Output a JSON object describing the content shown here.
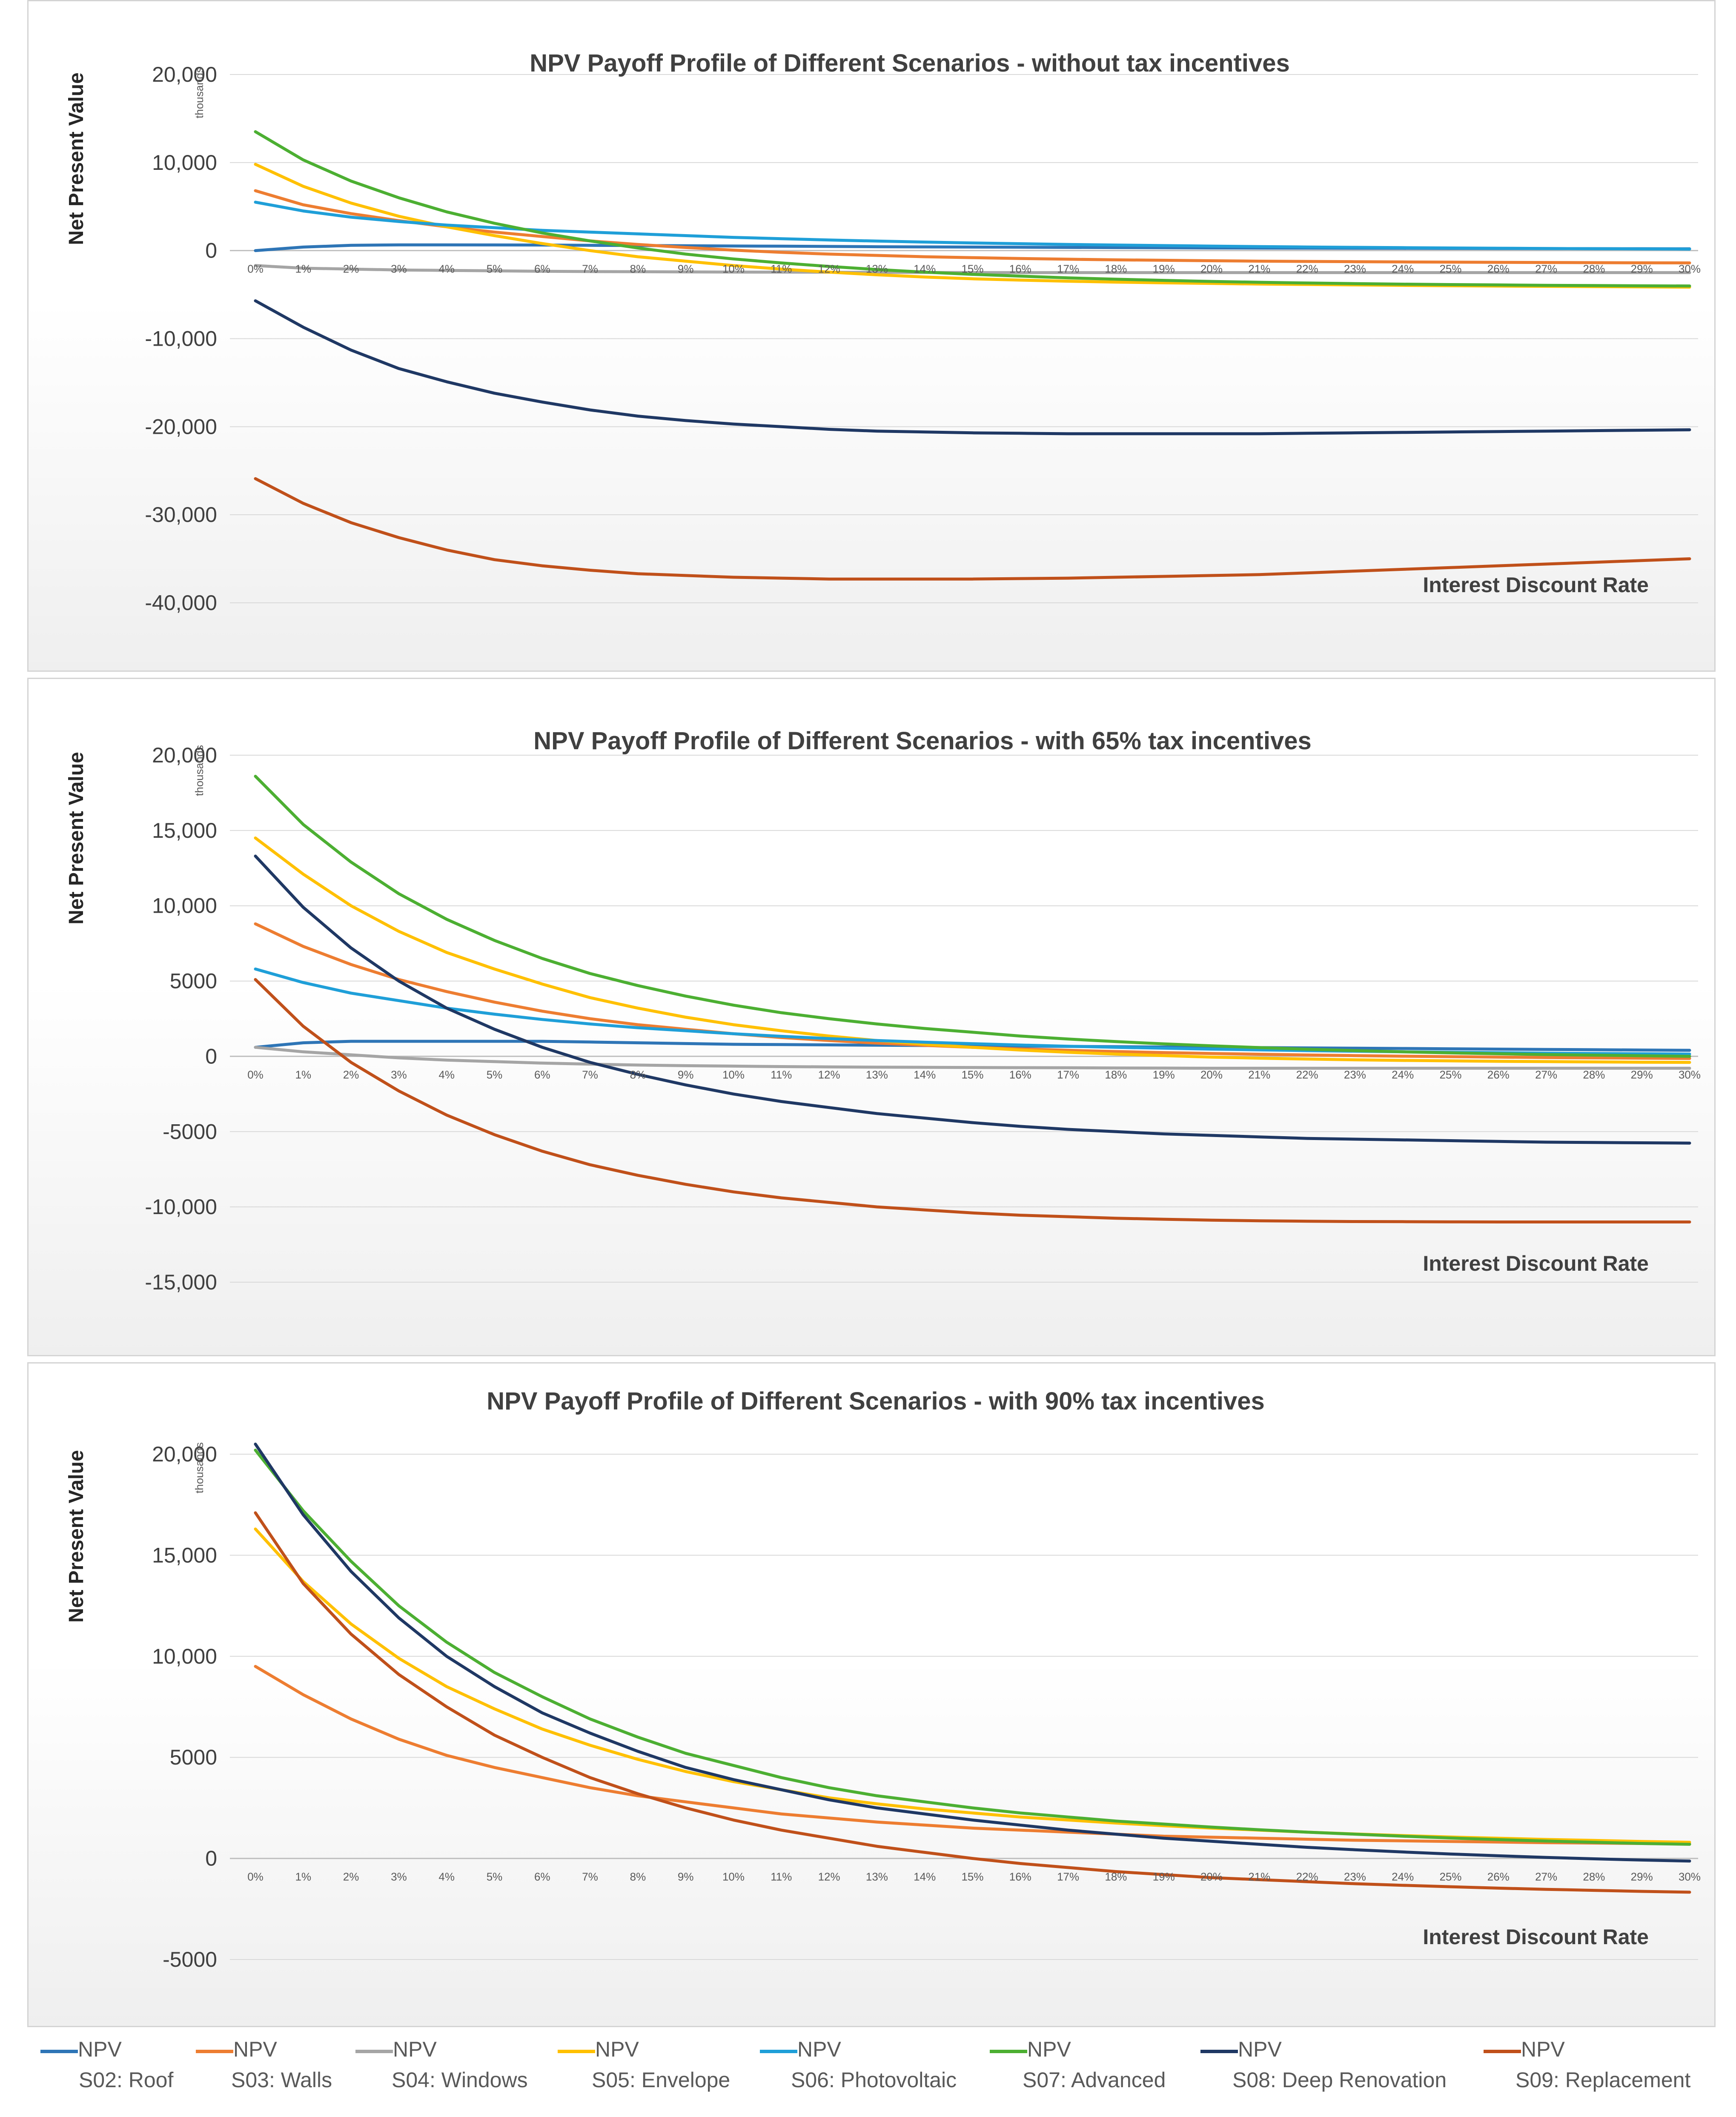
{
  "legend": [
    {
      "line": "NPV",
      "name": "S02: Roof",
      "color": "#2e75b6"
    },
    {
      "line": "NPV",
      "name": "S03: Walls",
      "color": "#ed7d31"
    },
    {
      "line": "NPV",
      "name": "S04: Windows",
      "color": "#a5a5a5"
    },
    {
      "line": "NPV",
      "name": "S05: Envelope",
      "color": "#ffc000"
    },
    {
      "line": "NPV",
      "name": "S06: Photovoltaic",
      "color": "#1f9fd8"
    },
    {
      "line": "NPV",
      "name": "S07: Advanced",
      "color": "#4caf32"
    },
    {
      "line": "NPV",
      "name": "S08: Deep Renovation",
      "color": "#1f3864"
    },
    {
      "line": "NPV",
      "name": "S09: Replacement",
      "color": "#c0501a"
    }
  ],
  "chart_data": [
    {
      "type": "line",
      "title": "NPV Payoff Profile of Different Scenarios - without tax incentives",
      "ylabel": "Net Present Value",
      "yunit": "thousands",
      "xlabel": "Interest Discount  Rate",
      "ylim": [
        -40000,
        20000
      ],
      "yticks": [
        20000,
        10000,
        0,
        -10000,
        -20000,
        -30000,
        -40000
      ],
      "ytick_labels": [
        "20,000",
        "10,000",
        "0",
        "-10,000",
        "-20,000",
        "-30,000",
        "-40,000"
      ],
      "categories": [
        "0%",
        "1%",
        "2%",
        "3%",
        "4%",
        "5%",
        "6%",
        "7%",
        "8%",
        "9%",
        "10%",
        "11%",
        "12%",
        "13%",
        "14%",
        "15%",
        "16%",
        "17%",
        "18%",
        "19%",
        "20%",
        "21%",
        "22%",
        "23%",
        "24%",
        "25%",
        "26%",
        "27%",
        "28%",
        "29%",
        "30%"
      ],
      "series": [
        {
          "name": "S02: Roof",
          "values": [
            0,
            400,
            600,
            650,
            650,
            640,
            630,
            600,
            580,
            550,
            520,
            500,
            470,
            440,
            420,
            400,
            380,
            360,
            340,
            320,
            300,
            290,
            280,
            270,
            260,
            250,
            240,
            230,
            220,
            210,
            200
          ]
        },
        {
          "name": "S03: Walls",
          "values": [
            6800,
            5200,
            4200,
            3400,
            2700,
            2100,
            1600,
            1100,
            700,
            350,
            50,
            -200,
            -400,
            -550,
            -700,
            -800,
            -900,
            -980,
            -1050,
            -1100,
            -1150,
            -1200,
            -1230,
            -1260,
            -1290,
            -1310,
            -1330,
            -1350,
            -1370,
            -1390,
            -1400
          ]
        },
        {
          "name": "S04: Windows",
          "values": [
            -1700,
            -2000,
            -2100,
            -2200,
            -2250,
            -2300,
            -2350,
            -2380,
            -2400,
            -2420,
            -2440,
            -2450,
            -2460,
            -2470,
            -2480,
            -2490,
            -2500,
            -2500,
            -2500,
            -2500,
            -2500,
            -2500,
            -2500,
            -2500,
            -2500,
            -2500,
            -2500,
            -2500,
            -2500,
            -2500,
            -2500
          ]
        },
        {
          "name": "S05: Envelope",
          "values": [
            9800,
            7300,
            5400,
            3900,
            2700,
            1700,
            800,
            0,
            -700,
            -1200,
            -1700,
            -2100,
            -2450,
            -2750,
            -3000,
            -3200,
            -3350,
            -3480,
            -3580,
            -3660,
            -3730,
            -3800,
            -3850,
            -3900,
            -3950,
            -3990,
            -4030,
            -4060,
            -4090,
            -4120,
            -4150
          ]
        },
        {
          "name": "S06: Photovoltaic",
          "values": [
            5500,
            4500,
            3800,
            3300,
            2900,
            2600,
            2300,
            2100,
            1900,
            1700,
            1500,
            1350,
            1200,
            1080,
            970,
            870,
            780,
            700,
            630,
            570,
            510,
            460,
            410,
            370,
            330,
            300,
            270,
            240,
            210,
            190,
            170
          ]
        },
        {
          "name": "S07: Advanced",
          "values": [
            13500,
            10300,
            7900,
            6000,
            4400,
            3100,
            2000,
            1100,
            300,
            -400,
            -950,
            -1400,
            -1800,
            -2150,
            -2450,
            -2700,
            -2900,
            -3100,
            -3250,
            -3380,
            -3500,
            -3600,
            -3680,
            -3750,
            -3810,
            -3860,
            -3900,
            -3940,
            -3970,
            -4000,
            -4020
          ]
        },
        {
          "name": "S08: Deep Renovation",
          "values": [
            -5700,
            -8700,
            -11300,
            -13400,
            -14900,
            -16200,
            -17200,
            -18100,
            -18800,
            -19300,
            -19700,
            -20000,
            -20300,
            -20500,
            -20600,
            -20700,
            -20750,
            -20800,
            -20800,
            -20800,
            -20800,
            -20800,
            -20750,
            -20700,
            -20650,
            -20600,
            -20550,
            -20500,
            -20450,
            -20400,
            -20350
          ]
        },
        {
          "name": "S09: Replacement",
          "values": [
            -25900,
            -28700,
            -30900,
            -32600,
            -34000,
            -35100,
            -35800,
            -36300,
            -36700,
            -36900,
            -37100,
            -37200,
            -37300,
            -37300,
            -37300,
            -37300,
            -37250,
            -37200,
            -37100,
            -37000,
            -36900,
            -36800,
            -36600,
            -36400,
            -36200,
            -36000,
            -35800,
            -35600,
            -35400,
            -35200,
            -35000
          ]
        }
      ]
    },
    {
      "type": "line",
      "title": "NPV Payoff Profile of Different Scenarios - with 65% tax incentives",
      "ylabel": "Net Present Value",
      "yunit": "thousands",
      "xlabel": "Interest Discount  Rate",
      "ylim": [
        -15000,
        20000
      ],
      "yticks": [
        20000,
        15000,
        10000,
        5000,
        0,
        -5000,
        -10000,
        -15000
      ],
      "ytick_labels": [
        "20,000",
        "15,000",
        "10,000",
        "5000",
        "0",
        "-5000",
        "-10,000",
        "-15,000"
      ],
      "categories": [
        "0%",
        "1%",
        "2%",
        "3%",
        "4%",
        "5%",
        "6%",
        "7%",
        "8%",
        "9%",
        "10%",
        "11%",
        "12%",
        "13%",
        "14%",
        "15%",
        "16%",
        "17%",
        "18%",
        "19%",
        "20%",
        "21%",
        "22%",
        "23%",
        "24%",
        "25%",
        "26%",
        "27%",
        "28%",
        "29%",
        "30%"
      ],
      "series": [
        {
          "name": "S02: Roof",
          "values": [
            600,
            900,
            1000,
            1000,
            1000,
            1000,
            1000,
            950,
            900,
            850,
            800,
            780,
            760,
            740,
            720,
            700,
            680,
            660,
            640,
            620,
            600,
            580,
            560,
            540,
            520,
            500,
            480,
            460,
            440,
            420,
            400
          ]
        },
        {
          "name": "S03: Walls",
          "values": [
            8800,
            7300,
            6100,
            5100,
            4300,
            3600,
            3000,
            2500,
            2100,
            1800,
            1500,
            1250,
            1050,
            880,
            730,
            600,
            490,
            400,
            320,
            250,
            190,
            140,
            90,
            50,
            10,
            -20,
            -50,
            -80,
            -100,
            -120,
            -140
          ]
        },
        {
          "name": "S04: Windows",
          "values": [
            600,
            300,
            100,
            -100,
            -250,
            -350,
            -450,
            -520,
            -580,
            -620,
            -650,
            -680,
            -700,
            -720,
            -730,
            -740,
            -750,
            -760,
            -770,
            -780,
            -790,
            -790,
            -790,
            -790,
            -790,
            -790,
            -790,
            -790,
            -790,
            -790,
            -790
          ]
        },
        {
          "name": "S05: Envelope",
          "values": [
            14500,
            12100,
            10000,
            8300,
            6900,
            5800,
            4800,
            3900,
            3200,
            2600,
            2100,
            1700,
            1350,
            1050,
            800,
            600,
            420,
            270,
            150,
            50,
            -50,
            -120,
            -180,
            -230,
            -270,
            -300,
            -330,
            -350,
            -370,
            -390,
            -400
          ]
        },
        {
          "name": "S06: Photovoltaic",
          "values": [
            5800,
            4900,
            4200,
            3700,
            3200,
            2800,
            2450,
            2150,
            1900,
            1700,
            1500,
            1330,
            1180,
            1050,
            940,
            840,
            750,
            670,
            600,
            540,
            480,
            430,
            380,
            340,
            300,
            270,
            240,
            210,
            190,
            170,
            150
          ]
        },
        {
          "name": "S07: Advanced",
          "values": [
            18600,
            15400,
            12900,
            10800,
            9100,
            7700,
            6500,
            5500,
            4700,
            4000,
            3400,
            2900,
            2500,
            2150,
            1850,
            1600,
            1350,
            1150,
            980,
            830,
            700,
            580,
            470,
            380,
            300,
            230,
            170,
            120,
            80,
            40,
            0
          ]
        },
        {
          "name": "S08: Deep Renovation",
          "values": [
            13300,
            9900,
            7200,
            5000,
            3200,
            1800,
            600,
            -400,
            -1200,
            -1900,
            -2500,
            -3000,
            -3400,
            -3800,
            -4100,
            -4400,
            -4650,
            -4850,
            -5000,
            -5150,
            -5250,
            -5350,
            -5450,
            -5500,
            -5550,
            -5600,
            -5650,
            -5700,
            -5720,
            -5740,
            -5760
          ]
        },
        {
          "name": "S09: Replacement",
          "values": [
            5100,
            2000,
            -400,
            -2300,
            -3900,
            -5200,
            -6300,
            -7200,
            -7900,
            -8500,
            -9000,
            -9400,
            -9700,
            -10000,
            -10200,
            -10400,
            -10550,
            -10650,
            -10750,
            -10820,
            -10880,
            -10920,
            -10950,
            -10970,
            -10980,
            -10990,
            -11000,
            -11000,
            -11000,
            -11000,
            -11000
          ]
        }
      ]
    },
    {
      "type": "line",
      "title": "NPV Payoff Profile of Different Scenarios - with 90% tax incentives",
      "ylabel": "Net Present Value",
      "yunit": "thousands",
      "xlabel": "Interest Discount  Rate",
      "ylim": [
        -5000,
        20000
      ],
      "yticks": [
        20000,
        15000,
        10000,
        5000,
        0,
        -5000
      ],
      "ytick_labels": [
        "20,000",
        "15,000",
        "10,000",
        "5000",
        "0",
        "-5000"
      ],
      "categories": [
        "0%",
        "1%",
        "2%",
        "3%",
        "4%",
        "5%",
        "6%",
        "7%",
        "8%",
        "9%",
        "10%",
        "11%",
        "12%",
        "13%",
        "14%",
        "15%",
        "16%",
        "17%",
        "18%",
        "19%",
        "20%",
        "21%",
        "22%",
        "23%",
        "24%",
        "25%",
        "26%",
        "27%",
        "28%",
        "29%",
        "30%"
      ],
      "series": [
        {
          "name": "S03: Walls",
          "values": [
            9500,
            8100,
            6900,
            5900,
            5100,
            4500,
            4000,
            3500,
            3100,
            2800,
            2500,
            2200,
            2000,
            1800,
            1650,
            1500,
            1400,
            1300,
            1200,
            1100,
            1050,
            1000,
            950,
            900,
            870,
            840,
            810,
            780,
            760,
            740,
            720
          ]
        },
        {
          "name": "S05: Envelope",
          "values": [
            16300,
            13700,
            11600,
            9900,
            8500,
            7400,
            6400,
            5600,
            4900,
            4300,
            3800,
            3400,
            3000,
            2700,
            2450,
            2250,
            2050,
            1900,
            1750,
            1620,
            1500,
            1400,
            1300,
            1210,
            1130,
            1060,
            1000,
            940,
            890,
            840,
            800
          ]
        },
        {
          "name": "S07: Advanced",
          "values": [
            20200,
            17200,
            14700,
            12500,
            10700,
            9200,
            8000,
            6900,
            6000,
            5200,
            4600,
            4000,
            3500,
            3100,
            2800,
            2500,
            2250,
            2050,
            1850,
            1700,
            1550,
            1420,
            1300,
            1200,
            1100,
            1010,
            930,
            860,
            800,
            740,
            700
          ]
        },
        {
          "name": "S08: Deep Renovation",
          "values": [
            20500,
            17000,
            14200,
            11900,
            10000,
            8500,
            7200,
            6200,
            5300,
            4500,
            3900,
            3400,
            2900,
            2500,
            2200,
            1900,
            1650,
            1400,
            1200,
            1000,
            850,
            700,
            550,
            430,
            320,
            220,
            130,
            50,
            -20,
            -80,
            -130
          ]
        },
        {
          "name": "S09: Replacement",
          "values": [
            17100,
            13600,
            11100,
            9100,
            7500,
            6100,
            5000,
            4000,
            3200,
            2500,
            1900,
            1400,
            1000,
            600,
            300,
            0,
            -250,
            -450,
            -650,
            -800,
            -950,
            -1050,
            -1150,
            -1250,
            -1330,
            -1400,
            -1470,
            -1530,
            -1580,
            -1630,
            -1670
          ]
        }
      ]
    }
  ]
}
